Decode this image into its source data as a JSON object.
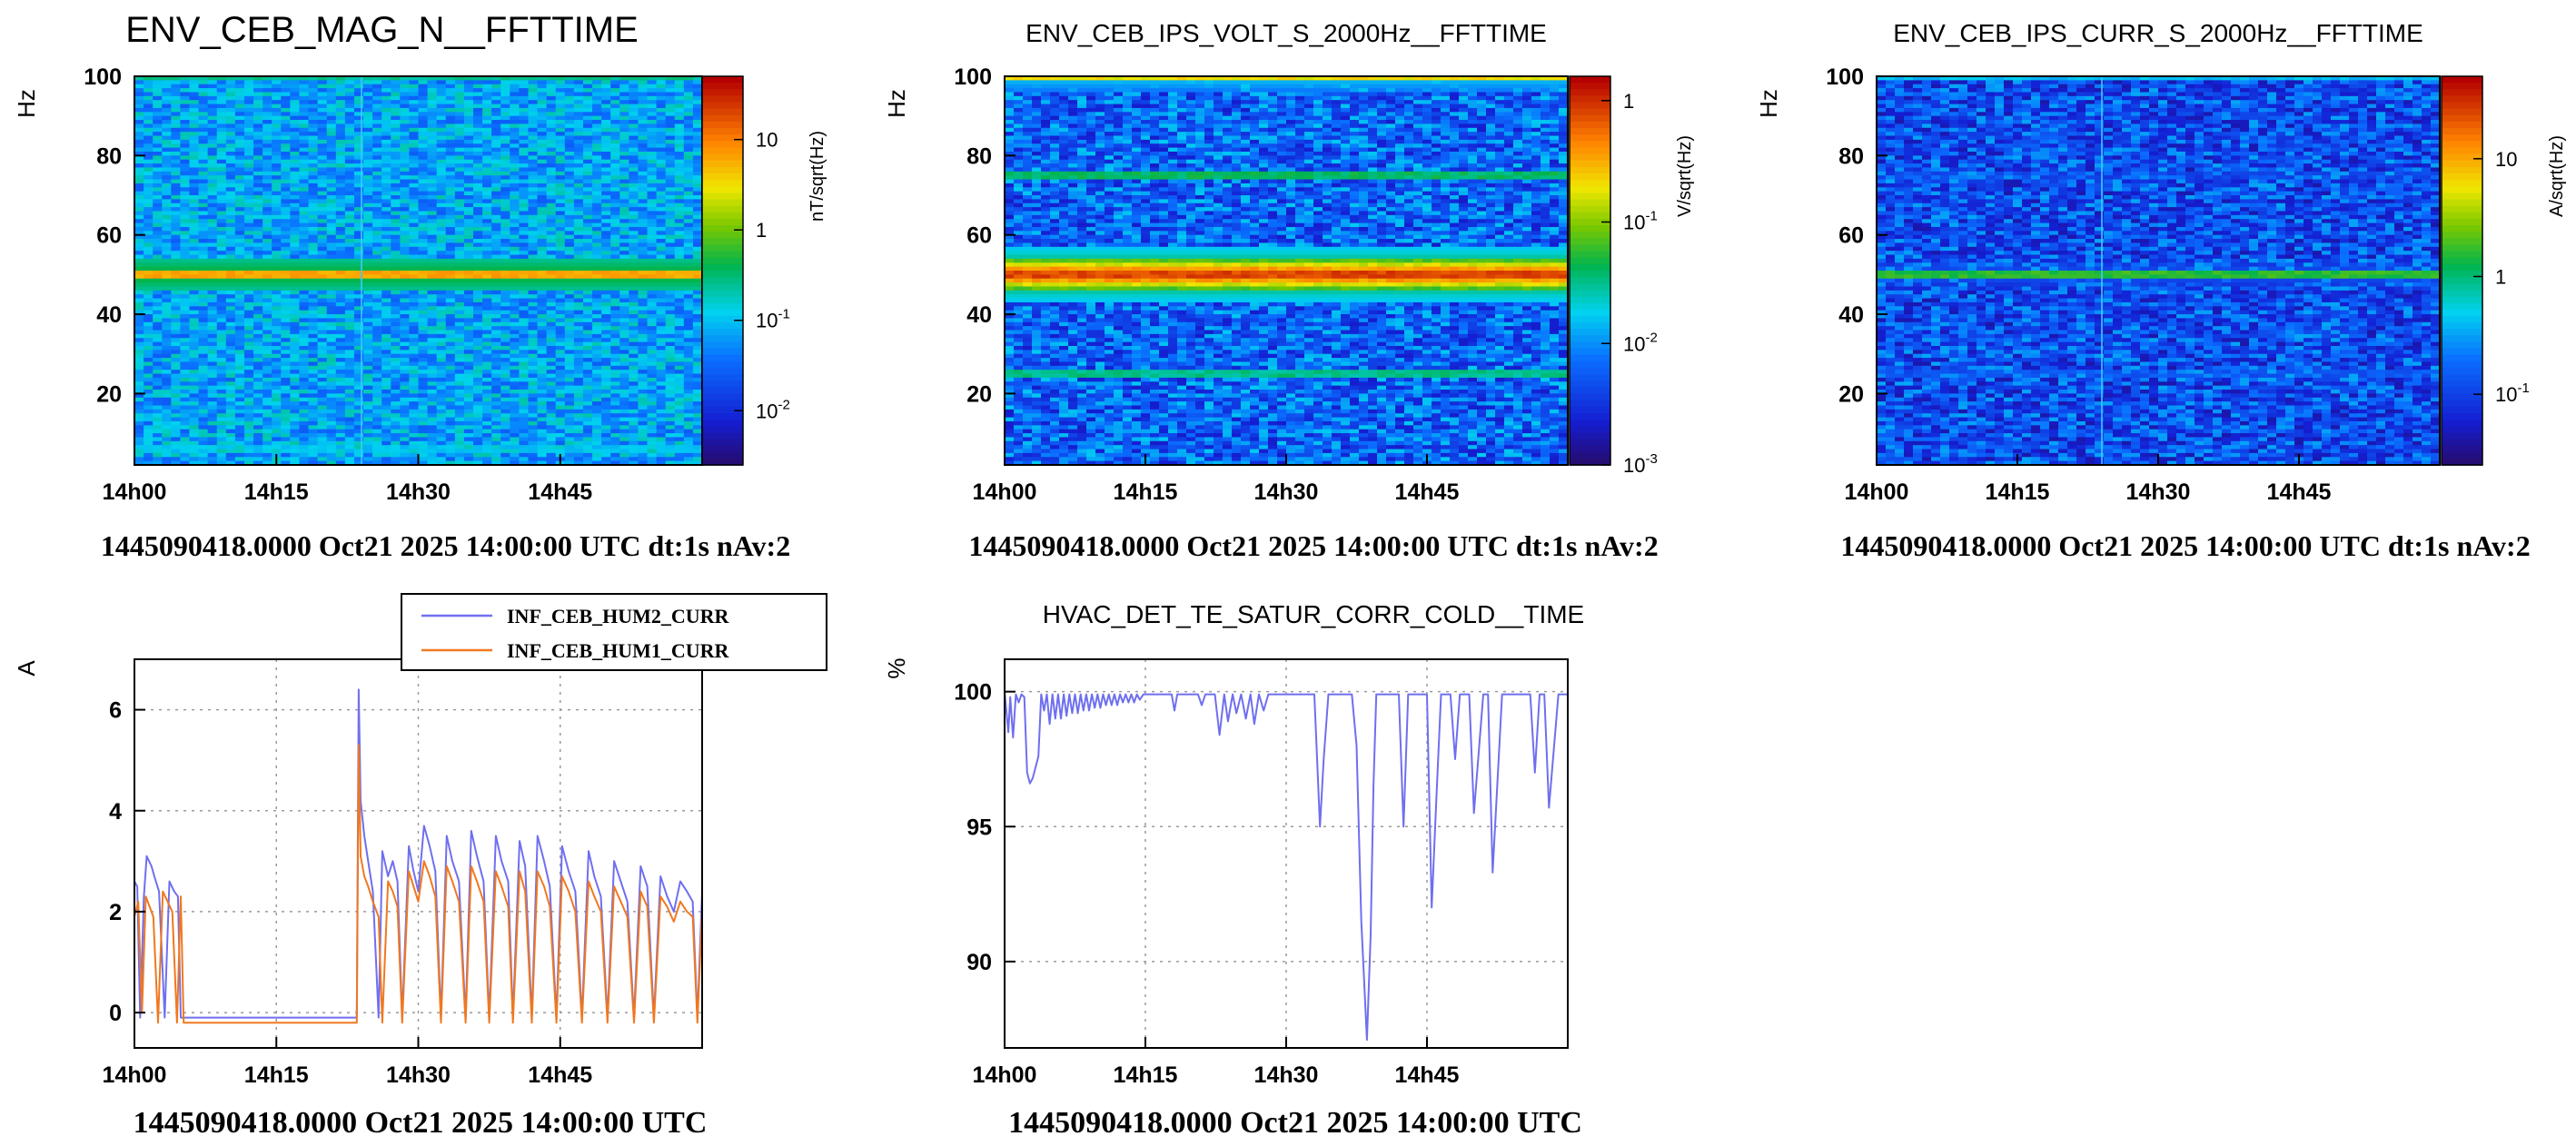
{
  "colors": {
    "blue_series": "#6f6ff0",
    "orange_series": "#f07820",
    "grid": "#9a9a9a",
    "axis": "#000000"
  },
  "chart_data": [
    {
      "type": "heatmap",
      "id": "mag",
      "title": "ENV_CEB_MAG_N__FFTTIME",
      "ylabel": "Hz",
      "colorbar_label": "nT/sqrt(Hz)",
      "x_ticks": [
        "14h00",
        "14h15",
        "14h30",
        "14h45"
      ],
      "y_ticks": [
        20,
        40,
        60,
        80,
        100
      ],
      "ylim": [
        2,
        100
      ],
      "colorbar_log_range": [
        -2.6,
        1.7
      ],
      "colorbar_ticks": [
        {
          "label": "10",
          "exp": "",
          "value": 10
        },
        {
          "label": "1",
          "exp": "",
          "value": 1
        },
        {
          "label": "10",
          "exp": "-1",
          "value": 0.1
        },
        {
          "label": "10",
          "exp": "-2",
          "value": 0.01
        }
      ],
      "background_level": -1.1,
      "lines": [
        {
          "hz": 50,
          "level": 1.0
        },
        {
          "hz": 100,
          "level": -0.4
        },
        {
          "hz": 6,
          "level": -0.8
        },
        {
          "hz": 16,
          "level": -1.2
        },
        {
          "hz": 76,
          "level": -1.3
        }
      ],
      "vlines_min": [
        24
      ],
      "footer": "1445090418.0000 Oct21 2025 14:00:00 UTC dt:1s nAv:2"
    },
    {
      "type": "heatmap",
      "id": "volt",
      "title": "ENV_CEB_IPS_VOLT_S_2000Hz__FFTTIME",
      "ylabel": "Hz",
      "colorbar_label": "V/sqrt(Hz)",
      "x_ticks": [
        "14h00",
        "14h15",
        "14h30",
        "14h45"
      ],
      "y_ticks": [
        20,
        40,
        60,
        80,
        100
      ],
      "ylim": [
        2,
        100
      ],
      "colorbar_log_range": [
        -3,
        0.2
      ],
      "colorbar_ticks": [
        {
          "label": "1",
          "exp": "",
          "value": 1
        },
        {
          "label": "10",
          "exp": "-1",
          "value": 0.1
        },
        {
          "label": "10",
          "exp": "-2",
          "value": 0.01
        },
        {
          "label": "10",
          "exp": "-3",
          "value": 0.001
        }
      ],
      "background_level": -2.2,
      "lines": [
        {
          "hz": 50,
          "level": 0.1
        },
        {
          "hz": 100,
          "level": -0.5
        },
        {
          "hz": 75,
          "level": -1.2
        },
        {
          "hz": 25,
          "level": -1.3
        }
      ],
      "vlines_min": [],
      "footer": "1445090418.0000 Oct21 2025 14:00:00 UTC dt:1s nAv:2"
    },
    {
      "type": "heatmap",
      "id": "curr",
      "title": "ENV_CEB_IPS_CURR_S_2000Hz__FFTTIME",
      "ylabel": "Hz",
      "colorbar_label": "A/sqrt(Hz)",
      "x_ticks": [
        "14h00",
        "14h15",
        "14h30",
        "14h45"
      ],
      "y_ticks": [
        20,
        40,
        60,
        80,
        100
      ],
      "ylim": [
        2,
        100
      ],
      "colorbar_log_range": [
        -1.6,
        1.7
      ],
      "colorbar_ticks": [
        {
          "label": "10",
          "exp": "",
          "value": 10
        },
        {
          "label": "1",
          "exp": "",
          "value": 1
        },
        {
          "label": "10",
          "exp": "-1",
          "value": 0.1
        }
      ],
      "background_level": -0.9,
      "lines": [
        {
          "hz": 50,
          "level": 0.4
        },
        {
          "hz": 100,
          "level": -0.2
        },
        {
          "hz": 75,
          "level": -0.8
        },
        {
          "hz": 25,
          "level": -0.7
        }
      ],
      "vlines_min": [
        24
      ],
      "footer": "1445090418.0000 Oct21 2025 14:00:00 UTC dt:1s nAv:2"
    },
    {
      "type": "line",
      "id": "hum",
      "title": "",
      "ylabel": "A",
      "x_ticks": [
        "14h00",
        "14h15",
        "14h30",
        "14h45"
      ],
      "xlim_min": [
        0,
        60
      ],
      "ylim": [
        -0.7,
        7.0
      ],
      "y_ticks": [
        0,
        2,
        4,
        6
      ],
      "series": [
        {
          "name": "INF_CEB_HUM2_CURR",
          "color": "#6f6ff0",
          "x": [
            0,
            0.3,
            0.6,
            1.0,
            1.3,
            1.8,
            2.1,
            2.6,
            3.2,
            3.7,
            4.2,
            4.6,
            4.9,
            5.2,
            23.5,
            23.7,
            23.9,
            24.3,
            24.7,
            25.2,
            25.8,
            26.2,
            26.8,
            27.3,
            27.8,
            28.3,
            29.0,
            29.5,
            30.0,
            30.6,
            31.2,
            31.8,
            32.4,
            33.0,
            33.6,
            34.3,
            35.0,
            35.6,
            36.2,
            36.9,
            37.5,
            38.2,
            38.8,
            39.5,
            40.0,
            40.7,
            41.3,
            42.0,
            42.6,
            43.3,
            43.9,
            44.6,
            45.2,
            45.9,
            46.6,
            47.3,
            48.0,
            48.6,
            49.3,
            50.0,
            50.7,
            51.4,
            52.1,
            52.8,
            53.5,
            54.2,
            54.9,
            55.6,
            56.3,
            57.0,
            57.7,
            58.4,
            59.0,
            59.5,
            60.0
          ],
          "y": [
            2.6,
            2.5,
            -0.1,
            2.3,
            3.1,
            2.9,
            2.7,
            2.4,
            -0.1,
            2.6,
            2.4,
            2.3,
            -0.1,
            -0.1,
            -0.1,
            6.4,
            4.2,
            3.5,
            3.0,
            2.4,
            -0.1,
            3.2,
            2.7,
            3.0,
            2.6,
            -0.1,
            3.3,
            2.8,
            2.4,
            3.7,
            3.3,
            2.8,
            -0.1,
            3.5,
            3.0,
            2.6,
            -0.1,
            3.6,
            3.1,
            2.6,
            -0.1,
            3.5,
            3.0,
            2.6,
            -0.1,
            3.4,
            2.9,
            -0.1,
            3.5,
            3.0,
            2.5,
            -0.1,
            3.3,
            2.8,
            2.4,
            -0.1,
            3.2,
            2.7,
            2.3,
            -0.1,
            3.0,
            2.6,
            2.2,
            -0.1,
            2.9,
            2.5,
            -0.1,
            2.7,
            2.3,
            2.0,
            2.6,
            2.4,
            2.2,
            -0.1,
            2.4
          ]
        },
        {
          "name": "INF_CEB_HUM1_CURR",
          "color": "#f07820",
          "x": [
            0,
            0.4,
            0.8,
            1.2,
            1.6,
            2.0,
            2.5,
            3.0,
            3.5,
            4.0,
            4.5,
            4.9,
            5.2,
            23.5,
            23.7,
            23.9,
            24.3,
            24.7,
            25.2,
            25.8,
            26.2,
            26.8,
            27.3,
            27.8,
            28.3,
            29.0,
            29.5,
            30.0,
            30.6,
            31.2,
            31.8,
            32.4,
            33.0,
            33.6,
            34.3,
            35.0,
            35.6,
            36.2,
            36.9,
            37.5,
            38.2,
            38.8,
            39.5,
            40.0,
            40.7,
            41.3,
            42.0,
            42.6,
            43.3,
            43.9,
            44.6,
            45.2,
            45.9,
            46.6,
            47.3,
            48.0,
            48.6,
            49.3,
            50.0,
            50.7,
            51.4,
            52.1,
            52.8,
            53.5,
            54.2,
            54.9,
            55.6,
            56.3,
            57.0,
            57.7,
            58.4,
            59.0,
            59.5,
            60.0
          ],
          "y": [
            1.9,
            2.2,
            0.0,
            2.3,
            2.1,
            1.9,
            -0.2,
            2.4,
            2.2,
            2.0,
            -0.2,
            2.3,
            -0.2,
            -0.2,
            5.3,
            3.1,
            2.7,
            2.5,
            2.2,
            1.9,
            -0.2,
            2.6,
            2.4,
            2.1,
            -0.2,
            2.8,
            2.5,
            2.2,
            3.0,
            2.7,
            2.3,
            -0.2,
            2.9,
            2.6,
            2.2,
            -0.2,
            2.9,
            2.6,
            2.2,
            -0.2,
            2.8,
            2.5,
            2.1,
            -0.2,
            2.8,
            2.4,
            -0.2,
            2.8,
            2.5,
            2.1,
            -0.2,
            2.7,
            2.4,
            2.0,
            -0.2,
            2.6,
            2.3,
            2.0,
            -0.2,
            2.5,
            2.2,
            1.9,
            -0.2,
            2.4,
            2.1,
            -0.2,
            2.3,
            2.1,
            1.8,
            2.2,
            2.0,
            1.9,
            -0.2,
            2.0
          ]
        }
      ],
      "footer": "1445090418.0000 Oct21 2025 14:00:00 UTC"
    },
    {
      "type": "line",
      "id": "hvac",
      "title": "HVAC_DET_TE_SATUR_CORR_COLD__TIME",
      "ylabel": "%",
      "x_ticks": [
        "14h00",
        "14h15",
        "14h30",
        "14h45"
      ],
      "xlim_min": [
        0,
        60
      ],
      "ylim": [
        86.8,
        101.2
      ],
      "y_ticks": [
        90,
        95,
        100
      ],
      "series": [
        {
          "name": "",
          "color": "#6f6ff0",
          "x": [
            0,
            0.4,
            0.6,
            0.9,
            1.2,
            1.5,
            1.8,
            2.1,
            2.4,
            2.7,
            3.0,
            3.3,
            3.6,
            3.9,
            4.2,
            4.5,
            4.8,
            5.1,
            5.4,
            5.7,
            6.0,
            6.3,
            6.6,
            6.9,
            7.2,
            7.5,
            7.8,
            8.1,
            8.4,
            8.7,
            9.0,
            9.3,
            9.6,
            9.9,
            10.2,
            10.5,
            10.8,
            11.1,
            11.4,
            11.7,
            12.0,
            12.3,
            12.6,
            12.9,
            13.2,
            13.5,
            13.8,
            14.1,
            14.4,
            14.8,
            15.4,
            17.8,
            18.1,
            18.4,
            20.6,
            21.0,
            21.4,
            22.4,
            22.9,
            23.4,
            23.8,
            24.3,
            24.7,
            25.2,
            25.7,
            26.2,
            26.6,
            27.1,
            27.6,
            28.1,
            28.6,
            30.5,
            33.0,
            33.6,
            34.0,
            34.5,
            37.0,
            37.5,
            38.0,
            38.6,
            39.0,
            39.3,
            39.6,
            40.0,
            40.6,
            42.0,
            42.5,
            43.0,
            43.5,
            44.0,
            45.0,
            45.5,
            46.0,
            46.5,
            47.5,
            48.0,
            48.5,
            48.8,
            49.5,
            50.0,
            51.0,
            51.5,
            52.0,
            53.0,
            54.0,
            55.0,
            56.0,
            56.5,
            57.0,
            57.5,
            58.0,
            59.0,
            60.0
          ],
          "y": [
            100.0,
            98.5,
            99.8,
            98.3,
            99.9,
            99.6,
            99.9,
            99.8,
            97.0,
            96.6,
            96.8,
            97.2,
            97.6,
            99.9,
            99.3,
            99.9,
            98.8,
            99.9,
            99.0,
            99.9,
            99.0,
            99.9,
            99.1,
            99.9,
            99.2,
            99.9,
            99.2,
            99.9,
            99.3,
            99.9,
            99.3,
            99.9,
            99.4,
            99.9,
            99.4,
            99.9,
            99.5,
            99.9,
            99.5,
            99.9,
            99.5,
            99.9,
            99.6,
            99.9,
            99.6,
            99.9,
            99.6,
            99.9,
            99.7,
            99.9,
            99.9,
            99.9,
            99.3,
            99.9,
            99.9,
            99.5,
            99.9,
            99.9,
            98.4,
            99.9,
            98.9,
            99.9,
            99.2,
            99.9,
            99.0,
            99.9,
            98.8,
            99.9,
            99.3,
            99.9,
            99.9,
            99.9,
            99.9,
            95.0,
            97.5,
            99.9,
            99.9,
            98.0,
            91.5,
            87.1,
            91.0,
            96.5,
            99.9,
            99.9,
            99.9,
            99.9,
            95.0,
            99.9,
            99.9,
            99.9,
            99.9,
            92.0,
            96.0,
            99.9,
            99.9,
            97.5,
            99.9,
            99.9,
            99.9,
            95.5,
            99.9,
            99.9,
            93.3,
            99.9,
            99.9,
            99.9,
            99.9,
            97.0,
            99.9,
            99.9,
            95.7,
            99.9,
            99.9
          ]
        }
      ],
      "footer": "1445090418.0000 Oct21 2025 14:00:00 UTC"
    }
  ]
}
